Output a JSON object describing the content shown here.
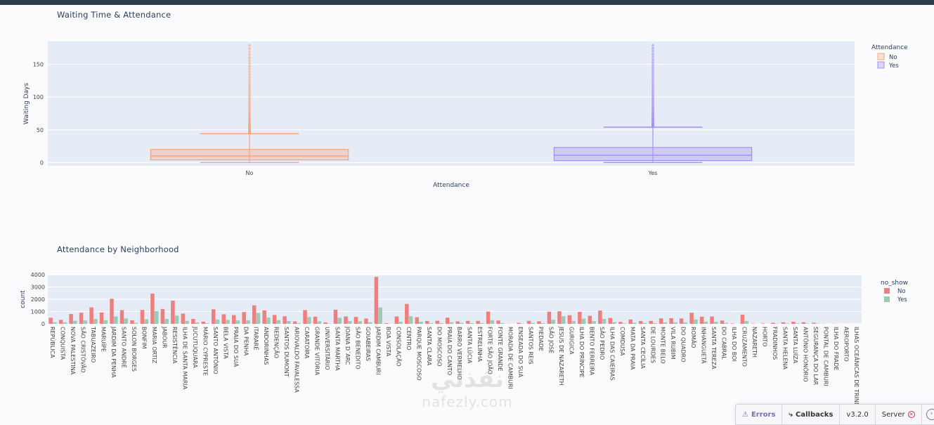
{
  "app": {
    "charts": [
      {
        "title": "Waiting Time & Attendance"
      },
      {
        "title": "Attendance by Neighborhood"
      }
    ]
  },
  "chart_data": [
    {
      "type": "box",
      "title": "Waiting Time & Attendance",
      "xlabel": "Attendance",
      "ylabel": "Waiting Days",
      "ylim": [
        -5,
        185
      ],
      "yticks": [
        0,
        50,
        100,
        150
      ],
      "legend_title": "Attendance",
      "legend_position": "top-right",
      "colors": {
        "No": "#f4a582",
        "Yes": "#a48ff4"
      },
      "series": [
        {
          "name": "No",
          "min": 0,
          "q1": 4,
          "median": 10,
          "q3": 20,
          "upper_fence": 44,
          "outliers_from": 45,
          "outliers_to": 179
        },
        {
          "name": "Yes",
          "min": 0,
          "q1": 3,
          "median": 11,
          "q3": 23,
          "upper_fence": 54,
          "outliers_from": 55,
          "outliers_to": 179
        }
      ]
    },
    {
      "type": "bar",
      "title": "Attendance by Neighborhood",
      "xlabel": "",
      "ylabel": "count",
      "ylim": [
        0,
        4000
      ],
      "yticks": [
        0,
        1000,
        2000,
        3000,
        4000
      ],
      "legend_title": "no_show",
      "legend_position": "top-right",
      "colors": {
        "No": "#ef7f7f",
        "Yes": "#9fc9b3"
      },
      "categories": [
        "REPÚBLICA",
        "CONQUISTA",
        "NOVA PALESTINA",
        "SÃO CRISTÓVÃO",
        "TABUAZEIRO",
        "MARUÍPE",
        "JARDIM DA PENHA",
        "SANTO ANDRÉ",
        "SOLON BORGES",
        "BONFIM",
        "MARIA ORTIZ",
        "JABOUR",
        "RESISTÊNCIA",
        "ILHA DE SANTA MARIA",
        "JUCUTUQUARA",
        "MÁRIO CYPRESTE",
        "SANTO ANTÔNIO",
        "BELA VISTA",
        "PRAIA DO SUÁ",
        "DA PENHA",
        "ITARARÉ",
        "ANDORINHAS",
        "REDENÇÃO",
        "SANTOS DUMONT",
        "ARIOVALDO FAVALESSA",
        "CARATOÍRA",
        "GRANDE VITÓRIA",
        "UNIVERSITÁRIO",
        "SANTA MARTHA",
        "JOANA D´ARC",
        "SÃO BENEDITO",
        "GOIABEIRAS",
        "JARDIM CAMBURI",
        "BOA VISTA",
        "CONSOLAÇÃO",
        "CENTRO",
        "PARQUE MOSCOSO",
        "SANTA CLARA",
        "DO MOSCOSO",
        "PRAIA DO CANTO",
        "BARRO VERMELHO",
        "SANTA LÚCIA",
        "ESTRELINHA",
        "FORTE SÃO JOÃO",
        "FONTE GRANDE",
        "MORADA DE CAMBURI",
        "ENSEADA DO SUÁ",
        "SANTOS REIS",
        "PIEDADE",
        "SÃO JOSÉ",
        "JESUS DE NAZARETH",
        "GURIGICA",
        "ILHA DO PRÍNCIPE",
        "BENTO FERREIRA",
        "SÃO PEDRO",
        "ILHA DAS CAIEIRAS",
        "COMDUSA",
        "MATA DA PRAIA",
        "SANTA CECÍLIA",
        "DE LOURDES",
        "MONTE BELO",
        "VILA RUBIM",
        "DO QUADRO",
        "ROMÃO",
        "INHANGUETÁ",
        "SANTA TEREZA",
        "DO CABRAL",
        "ILHA DO BOI",
        "CRUZAMENTO",
        "NAZARETH",
        "HORTO",
        "FRADINHOS",
        "SANTA HELENA",
        "SANTA LUÍZA",
        "ANTÔNIO HONÓRIO",
        "SEGURANÇA DO LAR",
        "PONTAL DE CAMBURI",
        "ILHA DO FRADE",
        "AEROPORTO",
        "ILHAS OCEÂNICAS DE TRINDADE"
      ],
      "series": [
        {
          "name": "No",
          "values": [
            490,
            320,
            800,
            900,
            1340,
            920,
            2040,
            1120,
            290,
            1130,
            2460,
            1210,
            1880,
            830,
            400,
            180,
            1180,
            780,
            710,
            960,
            1500,
            1090,
            720,
            620,
            200,
            1120,
            580,
            120,
            1150,
            600,
            560,
            430,
            3820,
            60,
            600,
            1620,
            540,
            230,
            250,
            500,
            200,
            240,
            240,
            1000,
            270,
            10,
            80,
            240,
            210,
            990,
            1020,
            700,
            980,
            660,
            1080,
            480,
            160,
            350,
            230,
            240,
            450,
            460,
            440,
            900,
            580,
            600,
            270,
            30,
            750,
            20,
            30,
            80,
            120,
            170,
            130,
            90,
            10,
            10,
            5,
            2
          ]
        },
        {
          "name": "Yes",
          "values": [
            130,
            120,
            250,
            280,
            390,
            300,
            600,
            440,
            80,
            370,
            1030,
            400,
            670,
            240,
            110,
            50,
            350,
            320,
            280,
            300,
            880,
            510,
            300,
            230,
            60,
            550,
            210,
            30,
            490,
            230,
            220,
            130,
            1330,
            10,
            170,
            620,
            170,
            60,
            60,
            130,
            80,
            60,
            60,
            300,
            60,
            0,
            20,
            80,
            50,
            320,
            620,
            230,
            420,
            220,
            400,
            140,
            40,
            90,
            70,
            60,
            110,
            120,
            110,
            350,
            170,
            160,
            80,
            4,
            230,
            3,
            6,
            20,
            30,
            40,
            30,
            20,
            0,
            0,
            0,
            0
          ]
        }
      ]
    }
  ],
  "devtools": {
    "errors_label": "Errors",
    "callbacks_label": "Callbacks",
    "version_label": "v3.2.0",
    "server_label": "Server"
  },
  "watermark": {
    "arabic_text": "نفذلي",
    "latin_text": "nafezly.com"
  }
}
